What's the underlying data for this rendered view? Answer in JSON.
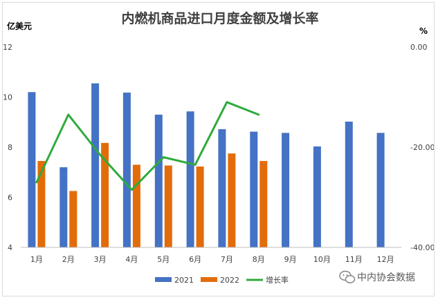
{
  "chart_data": {
    "type": "bar",
    "title": "内燃机商品进口月度金额及增长率",
    "ylabel_left": "亿美元",
    "ylabel_right": "%",
    "categories": [
      "1月",
      "2月",
      "3月",
      "4月",
      "5月",
      "6月",
      "7月",
      "8月",
      "9月",
      "10月",
      "11月",
      "12月"
    ],
    "y_left": {
      "min": 4,
      "max": 12,
      "ticks": [
        "4",
        "6",
        "8",
        "10",
        "12"
      ]
    },
    "y_right": {
      "min": -40,
      "max": 0,
      "ticks": [
        "-40.00",
        "-20.00",
        "0.00"
      ]
    },
    "series": [
      {
        "name": "2021",
        "kind": "bar",
        "axis": "left",
        "color": "#4472c4",
        "values": [
          10.2,
          7.2,
          10.55,
          10.18,
          9.3,
          9.43,
          8.72,
          8.62,
          8.57,
          8.03,
          9.02,
          8.57
        ]
      },
      {
        "name": "2022",
        "kind": "bar",
        "axis": "left",
        "color": "#e36c0a",
        "values": [
          7.45,
          6.25,
          8.17,
          7.3,
          7.27,
          7.23,
          7.75,
          7.45,
          null,
          null,
          null,
          null
        ]
      },
      {
        "name": "增长率",
        "kind": "line",
        "axis": "right",
        "color": "#2eaa3c",
        "values": [
          -27.0,
          -13.5,
          -21.5,
          -28.5,
          -22.0,
          -23.5,
          -11.0,
          -13.5,
          null,
          null,
          null,
          null
        ]
      }
    ],
    "legend_position": "bottom",
    "grid": false
  },
  "watermark": {
    "text": "中内协会数据",
    "icon": "wechat-icon"
  }
}
